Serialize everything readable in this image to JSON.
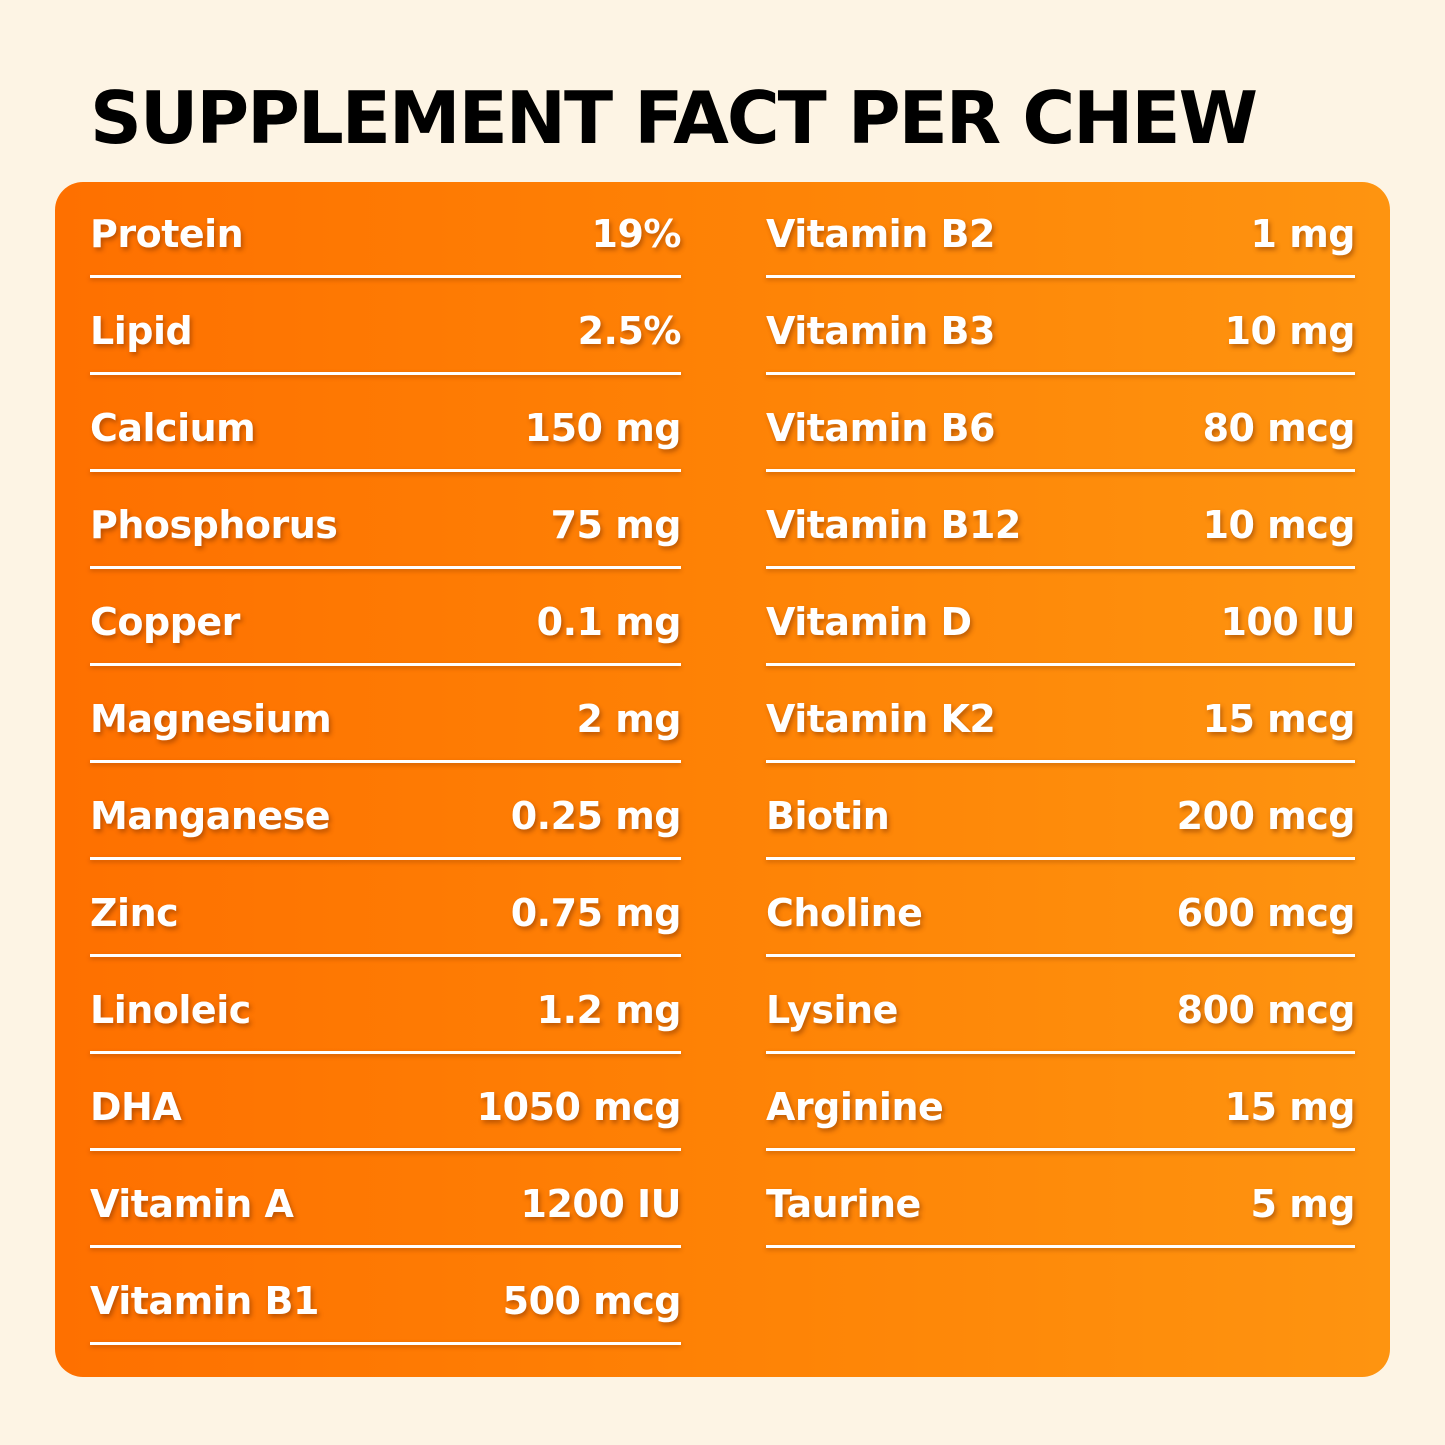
{
  "title": "SUPPLEMENT FACT PER CHEW",
  "left_column": [
    {
      "name": "Protein",
      "value": "19%"
    },
    {
      "name": "Lipid",
      "value": "2.5%"
    },
    {
      "name": "Calcium",
      "value": "150 mg"
    },
    {
      "name": "Phosphorus",
      "value": "75 mg"
    },
    {
      "name": "Copper",
      "value": "0.1 mg"
    },
    {
      "name": "Magnesium",
      "value": "2 mg"
    },
    {
      "name": "Manganese",
      "value": "0.25 mg"
    },
    {
      "name": "Zinc",
      "value": "0.75 mg"
    },
    {
      "name": "Linoleic",
      "value": "1.2 mg"
    },
    {
      "name": "DHA",
      "value": "1050 mcg"
    },
    {
      "name": "Vitamin A",
      "value": "1200 IU"
    },
    {
      "name": "Vitamin B1",
      "value": "500 mcg"
    }
  ],
  "right_column": [
    {
      "name": "Vitamin B2",
      "value": "1 mg"
    },
    {
      "name": "Vitamin B3",
      "value": "10 mg"
    },
    {
      "name": "Vitamin B6",
      "value": "80 mcg"
    },
    {
      "name": "Vitamin B12",
      "value": "10 mcg"
    },
    {
      "name": "Vitamin D",
      "value": "100 IU"
    },
    {
      "name": "Vitamin K2",
      "value": "15 mcg"
    },
    {
      "name": "Biotin",
      "value": "200 mcg"
    },
    {
      "name": "Choline",
      "value": "600 mcg"
    },
    {
      "name": "Lysine",
      "value": "800 mcg"
    },
    {
      "name": "Arginine",
      "value": "15 mg"
    },
    {
      "name": "Taurine",
      "value": "5 mg"
    }
  ],
  "colors": {
    "background": "#fdf4e4",
    "panel_start": "#fe7000",
    "panel_end": "#fe9410",
    "text": "#ffffff",
    "title": "#000000"
  }
}
